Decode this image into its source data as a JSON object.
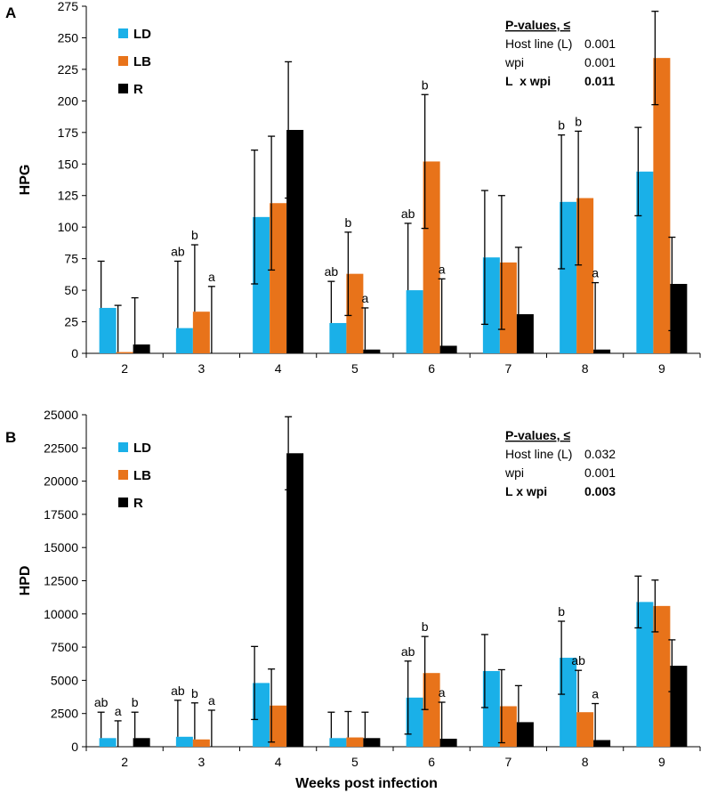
{
  "colors": {
    "LD": "#1ab0e8",
    "LB": "#e8731a",
    "R": "#000000"
  },
  "chart_data": [
    {
      "panel": "A",
      "type": "bar",
      "ylabel": "HPG",
      "xlabel": "",
      "ylim": [
        0,
        275
      ],
      "yticks": [
        0,
        25,
        50,
        75,
        100,
        125,
        150,
        175,
        200,
        225,
        250,
        275
      ],
      "categories": [
        "2",
        "3",
        "4",
        "5",
        "6",
        "7",
        "8",
        "9"
      ],
      "series": [
        {
          "name": "LD",
          "values": [
            36,
            20,
            108,
            24,
            50,
            76,
            120,
            144
          ],
          "errors": [
            37,
            53,
            53,
            33,
            53,
            53,
            53,
            35
          ],
          "letters": [
            "",
            "ab",
            "",
            "ab",
            "ab",
            "",
            "b",
            ""
          ]
        },
        {
          "name": "LB",
          "values": [
            1,
            33,
            119,
            63,
            152,
            72,
            123,
            234
          ],
          "errors": [
            37,
            53,
            53,
            33,
            53,
            53,
            53,
            37
          ],
          "letters": [
            "",
            "b",
            "",
            "b",
            "b",
            "",
            "b",
            ""
          ]
        },
        {
          "name": "R",
          "values": [
            7,
            0,
            177,
            3,
            6,
            31,
            3,
            55
          ],
          "errors": [
            37,
            53,
            54,
            33,
            53,
            53,
            53,
            37
          ],
          "letters": [
            "",
            "a",
            "",
            "a",
            "a",
            "",
            "a",
            ""
          ]
        }
      ],
      "pvalues": {
        "heading": "P-values, ≤",
        "rows": [
          {
            "label": "Host line (L)",
            "value": "0.001",
            "bold": false
          },
          {
            "label": "wpi",
            "value": "0.001",
            "bold": false
          },
          {
            "label": "L  x wpi",
            "value": "0.011",
            "bold": true
          }
        ]
      }
    },
    {
      "panel": "B",
      "type": "bar",
      "ylabel": "HPD",
      "xlabel": "Weeks post infection",
      "ylim": [
        0,
        25000
      ],
      "yticks": [
        0,
        2500,
        5000,
        7500,
        10000,
        12500,
        15000,
        17500,
        20000,
        22500,
        25000
      ],
      "categories": [
        "2",
        "3",
        "4",
        "5",
        "6",
        "7",
        "8",
        "9"
      ],
      "series": [
        {
          "name": "LD",
          "values": [
            650,
            750,
            4800,
            650,
            3700,
            5700,
            6700,
            10900
          ],
          "errors": [
            1950,
            2750,
            2750,
            1950,
            2750,
            2750,
            2750,
            1950
          ],
          "letters": [
            "ab",
            "ab",
            "",
            "",
            "ab",
            "",
            "b",
            ""
          ]
        },
        {
          "name": "LB",
          "values": [
            0,
            550,
            3100,
            700,
            5550,
            3050,
            2600,
            10600
          ],
          "errors": [
            1950,
            2750,
            2750,
            1950,
            2750,
            2750,
            3150,
            1950
          ],
          "letters": [
            "a",
            "b",
            "",
            "",
            "b",
            "",
            "ab",
            ""
          ]
        },
        {
          "name": "R",
          "values": [
            650,
            0,
            22100,
            650,
            600,
            1850,
            500,
            6100
          ],
          "errors": [
            1950,
            2750,
            2750,
            1950,
            2750,
            2750,
            2750,
            1950
          ],
          "letters": [
            "b",
            "a",
            "",
            "",
            "a",
            "",
            "a",
            ""
          ]
        }
      ],
      "pvalues": {
        "heading": "P-values, ≤",
        "rows": [
          {
            "label": "Host line (L)",
            "value": "0.032",
            "bold": false
          },
          {
            "label": "wpi",
            "value": "0.001",
            "bold": false
          },
          {
            "label": "L x wpi",
            "value": "0.003",
            "bold": true
          }
        ]
      }
    }
  ]
}
